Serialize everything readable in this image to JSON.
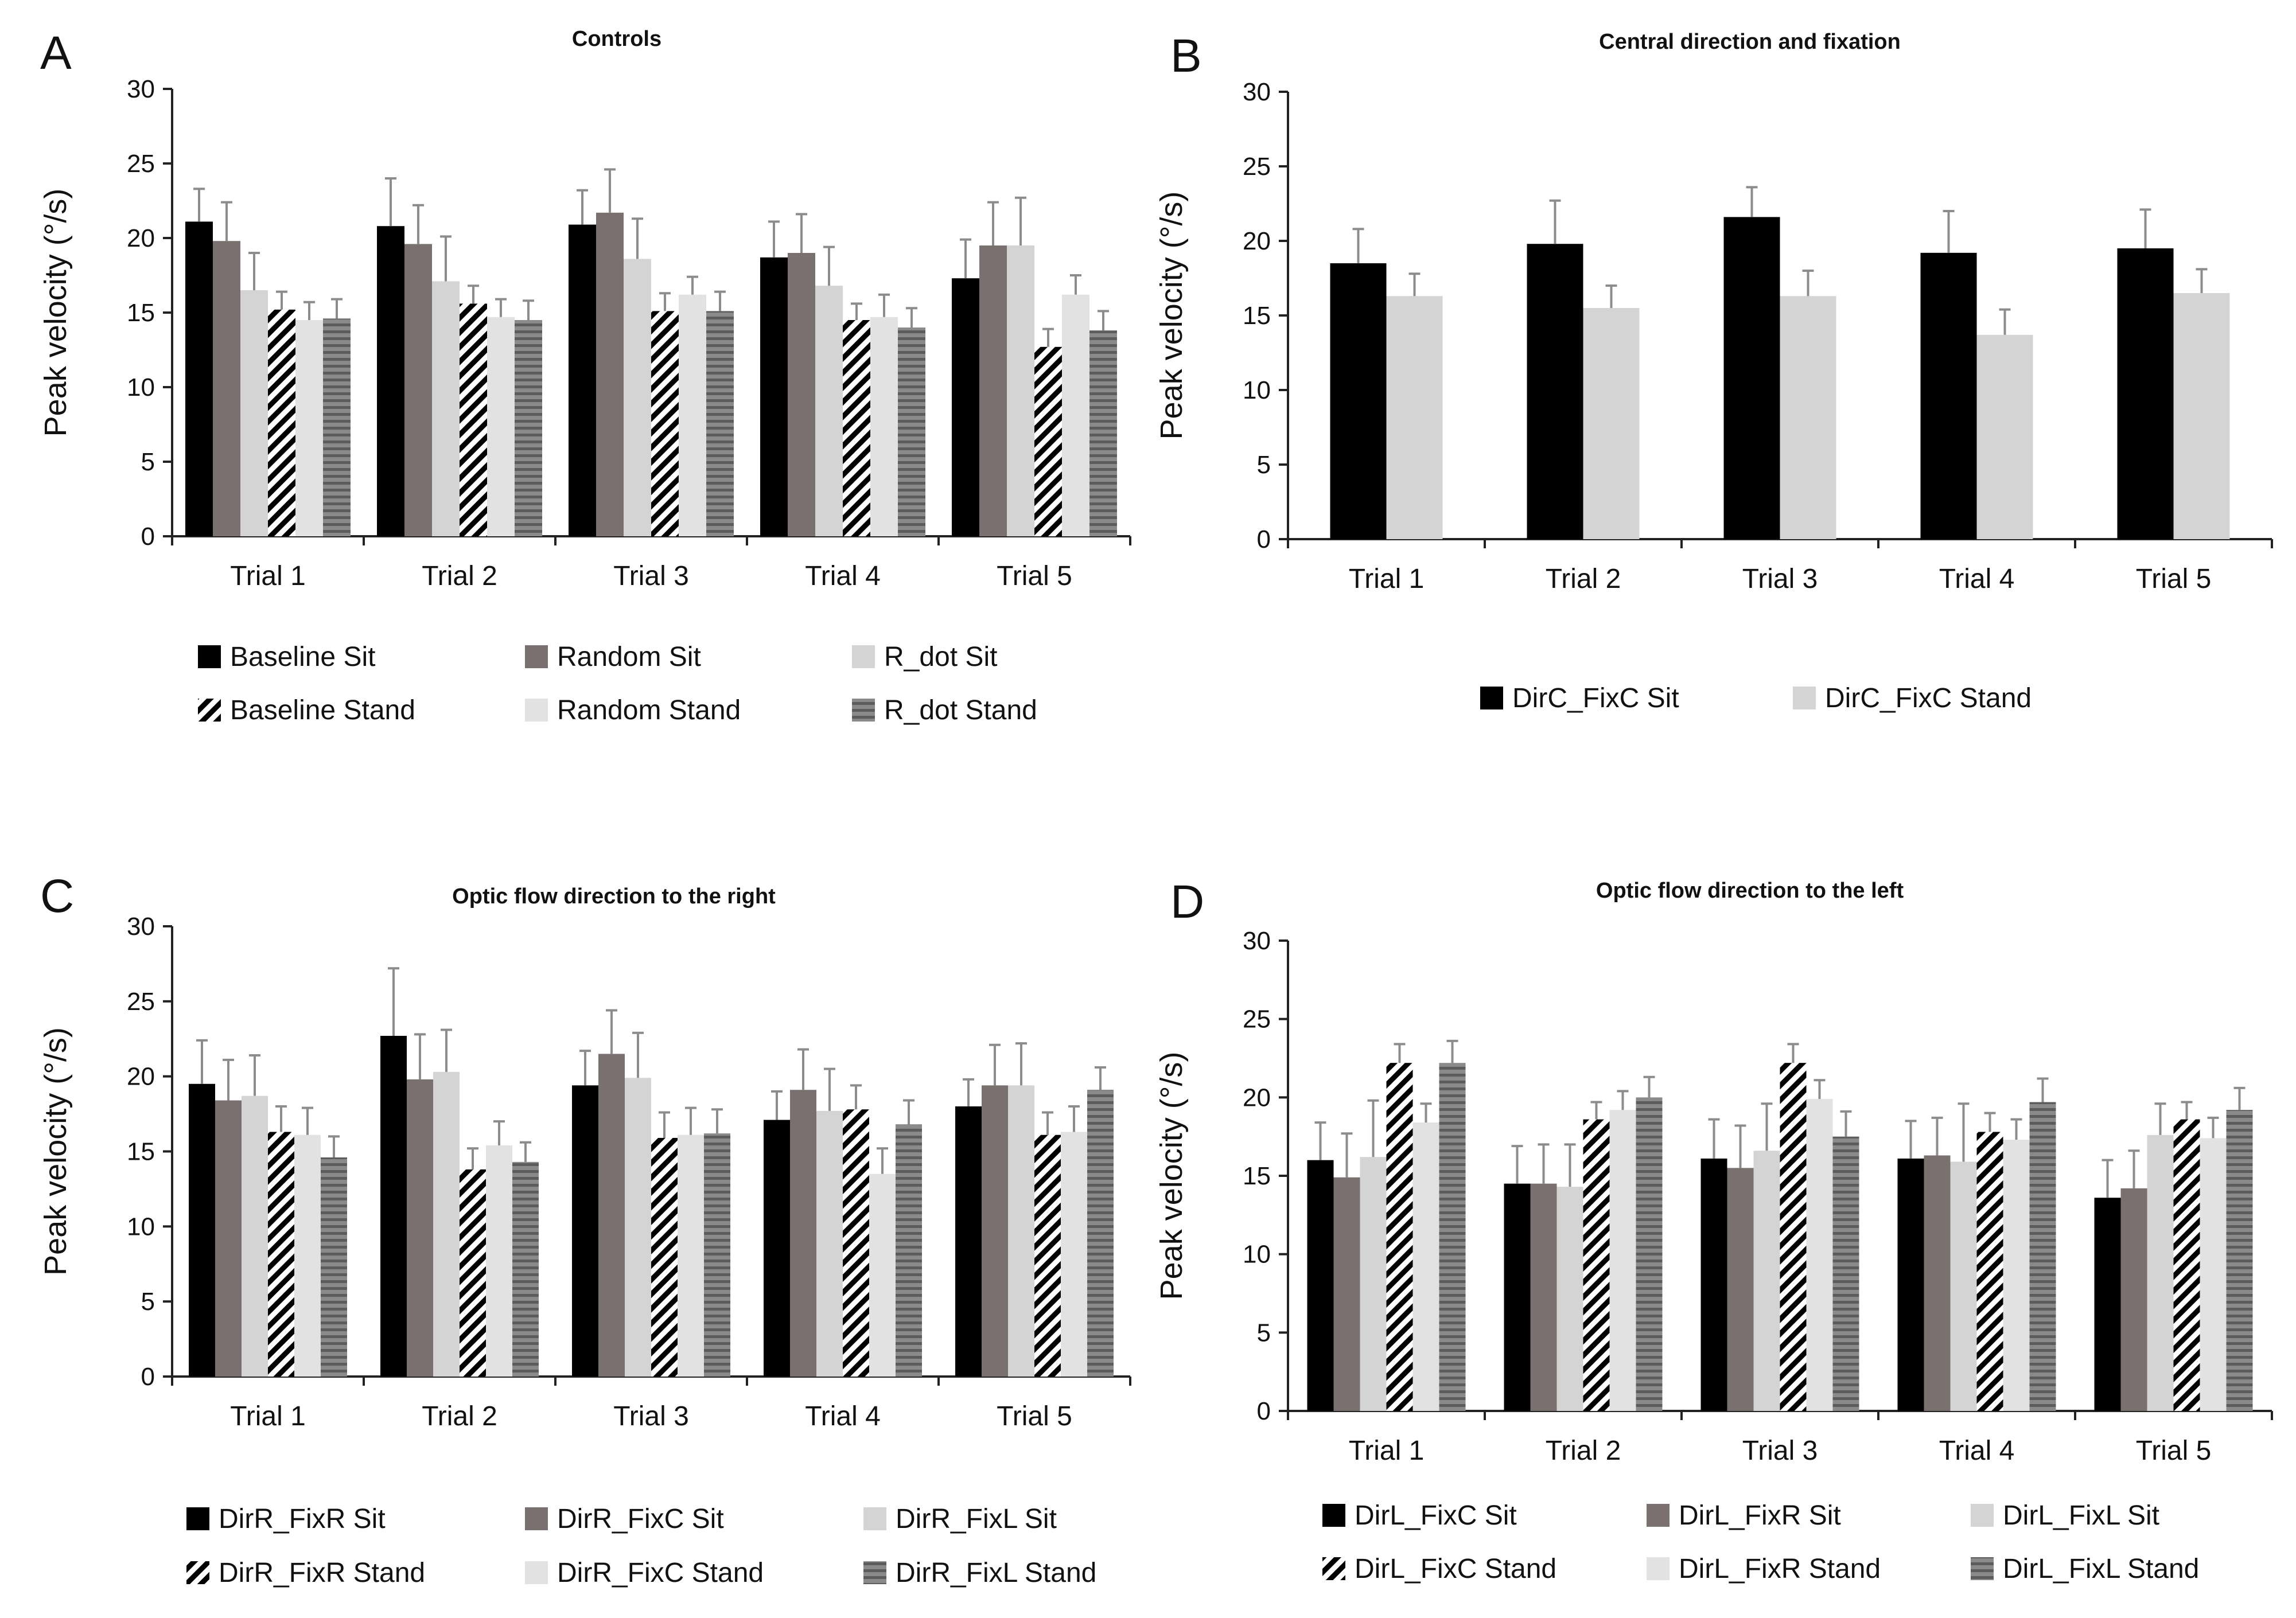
{
  "chart_data": [
    {
      "type": "bar",
      "panel": "A",
      "title": "Controls",
      "xlabel": "",
      "ylabel": "Peak velocity (°/s)",
      "ylim": [
        0,
        30
      ],
      "yticks": [
        0,
        5,
        10,
        15,
        20,
        25,
        30
      ],
      "categories": [
        "Trial 1",
        "Trial 2",
        "Trial 3",
        "Trial 4",
        "Trial 5"
      ],
      "series": [
        {
          "name": "Baseline Sit",
          "color": "#000000",
          "pattern": "solid",
          "values": [
            21.1,
            20.8,
            20.9,
            18.7,
            17.3
          ],
          "errors": [
            2.2,
            3.2,
            2.3,
            2.4,
            2.6
          ]
        },
        {
          "name": "Random Sit",
          "color": "#7a7070",
          "pattern": "solid",
          "values": [
            19.8,
            19.6,
            21.7,
            19.0,
            19.5
          ],
          "errors": [
            2.6,
            2.6,
            2.9,
            2.6,
            2.9
          ]
        },
        {
          "name": "R_dot Sit",
          "color": "#d4d4d4",
          "pattern": "solid",
          "values": [
            16.5,
            17.1,
            18.6,
            16.8,
            19.5
          ],
          "errors": [
            2.5,
            3.0,
            2.7,
            2.6,
            3.2
          ]
        },
        {
          "name": "Baseline Stand",
          "color": "#000000",
          "pattern": "diagonal",
          "values": [
            15.2,
            15.6,
            15.1,
            14.5,
            12.7
          ],
          "errors": [
            1.2,
            1.2,
            1.2,
            1.1,
            1.2
          ]
        },
        {
          "name": "Random Stand",
          "color": "#e2e2e2",
          "pattern": "solid",
          "values": [
            14.5,
            14.7,
            16.2,
            14.7,
            16.2
          ],
          "errors": [
            1.2,
            1.2,
            1.2,
            1.5,
            1.3
          ]
        },
        {
          "name": "R_dot Stand",
          "color": "#7a7a7a",
          "pattern": "horizontal",
          "values": [
            14.6,
            14.5,
            15.1,
            14.0,
            13.8
          ],
          "errors": [
            1.3,
            1.3,
            1.3,
            1.3,
            1.3
          ]
        }
      ],
      "legend_rows": [
        [
          "Baseline Sit",
          "Random Sit",
          "R_dot Sit"
        ],
        [
          "Baseline Stand",
          "Random Stand",
          "R_dot Stand"
        ]
      ]
    },
    {
      "type": "bar",
      "panel": "B",
      "title": "Central direction and fixation",
      "xlabel": "",
      "ylabel": "Peak velocity (°/s)",
      "ylim": [
        0,
        30
      ],
      "yticks": [
        0,
        5,
        10,
        15,
        20,
        25,
        30
      ],
      "categories": [
        "Trial 1",
        "Trial 2",
        "Trial 3",
        "Trial 4",
        "Trial 5"
      ],
      "series": [
        {
          "name": "DirC_FixC Sit",
          "color": "#000000",
          "pattern": "solid",
          "values": [
            18.5,
            19.8,
            21.6,
            19.2,
            19.5
          ],
          "errors": [
            2.3,
            2.9,
            2.0,
            2.8,
            2.6
          ]
        },
        {
          "name": "DirC_FixC Stand",
          "color": "#d4d4d4",
          "pattern": "solid",
          "values": [
            16.3,
            15.5,
            16.3,
            13.7,
            16.5
          ],
          "errors": [
            1.5,
            1.5,
            1.7,
            1.7,
            1.6
          ]
        }
      ],
      "legend_rows": [
        [
          "DirC_FixC Sit",
          "DirC_FixC Stand"
        ]
      ]
    },
    {
      "type": "bar",
      "panel": "C",
      "title": "Optic flow direction to the right",
      "xlabel": "",
      "ylabel": "Peak velocity (°/s)",
      "ylim": [
        0,
        30
      ],
      "yticks": [
        0,
        5,
        10,
        15,
        20,
        25,
        30
      ],
      "categories": [
        "Trial 1",
        "Trial 2",
        "Trial 3",
        "Trial 4",
        "Trial 5"
      ],
      "series": [
        {
          "name": "DirR_FixR Sit",
          "color": "#000000",
          "pattern": "solid",
          "values": [
            19.5,
            22.7,
            19.4,
            17.1,
            18.0
          ],
          "errors": [
            2.9,
            4.5,
            2.3,
            1.9,
            1.8
          ]
        },
        {
          "name": "DirR_FixC Sit",
          "color": "#7a7070",
          "pattern": "solid",
          "values": [
            18.4,
            19.8,
            21.5,
            19.1,
            19.4
          ],
          "errors": [
            2.7,
            3.0,
            2.9,
            2.7,
            2.7
          ]
        },
        {
          "name": "DirR_FixL Sit",
          "color": "#d4d4d4",
          "pattern": "solid",
          "values": [
            18.7,
            20.3,
            19.9,
            17.7,
            19.4
          ],
          "errors": [
            2.7,
            2.8,
            3.0,
            2.8,
            2.8
          ]
        },
        {
          "name": "DirR_FixR Stand",
          "color": "#000000",
          "pattern": "diagonal",
          "values": [
            16.3,
            13.8,
            15.9,
            17.8,
            16.1
          ],
          "errors": [
            1.7,
            1.4,
            1.7,
            1.6,
            1.5
          ]
        },
        {
          "name": "DirR_FixC Stand",
          "color": "#e2e2e2",
          "pattern": "solid",
          "values": [
            16.1,
            15.4,
            16.1,
            13.5,
            16.3
          ],
          "errors": [
            1.8,
            1.6,
            1.8,
            1.7,
            1.7
          ]
        },
        {
          "name": "DirR_FixL Stand",
          "color": "#7a7a7a",
          "pattern": "horizontal",
          "values": [
            14.6,
            14.3,
            16.2,
            16.8,
            19.1
          ],
          "errors": [
            1.4,
            1.3,
            1.6,
            1.6,
            1.5
          ]
        }
      ],
      "legend_rows": [
        [
          "DirR_FixR Sit",
          "DirR_FixC Sit",
          "DirR_FixL Sit"
        ],
        [
          "DirR_FixR Stand",
          "DirR_FixC Stand",
          "DirR_FixL Stand"
        ]
      ]
    },
    {
      "type": "bar",
      "panel": "D",
      "title": "Optic flow direction to the left",
      "xlabel": "",
      "ylabel": "Peak velocity (°/s)",
      "ylim": [
        0,
        30
      ],
      "yticks": [
        0,
        5,
        10,
        15,
        20,
        25,
        30
      ],
      "categories": [
        "Trial 1",
        "Trial 2",
        "Trial 3",
        "Trial 4",
        "Trial 5"
      ],
      "series": [
        {
          "name": "DirL_FixC Sit",
          "color": "#000000",
          "pattern": "solid",
          "values": [
            16.0,
            14.5,
            16.1,
            16.1,
            13.6
          ],
          "errors": [
            2.4,
            2.4,
            2.5,
            2.4,
            2.4
          ]
        },
        {
          "name": "DirL_FixR Sit",
          "color": "#7a7070",
          "pattern": "solid",
          "values": [
            14.9,
            14.5,
            15.5,
            16.3,
            14.2
          ],
          "errors": [
            2.8,
            2.5,
            2.7,
            2.4,
            2.4
          ]
        },
        {
          "name": "DirL_FixL Sit",
          "color": "#d4d4d4",
          "pattern": "solid",
          "values": [
            16.2,
            14.3,
            16.6,
            15.9,
            17.6
          ],
          "errors": [
            3.6,
            2.7,
            3.0,
            3.7,
            2.0
          ]
        },
        {
          "name": "DirL_FixC Stand",
          "color": "#000000",
          "pattern": "diagonal",
          "values": [
            22.2,
            18.6,
            22.2,
            17.8,
            18.6
          ],
          "errors": [
            1.2,
            1.1,
            1.2,
            1.2,
            1.1
          ]
        },
        {
          "name": "DirL_FixR Stand",
          "color": "#e2e2e2",
          "pattern": "solid",
          "values": [
            18.4,
            19.2,
            19.9,
            17.3,
            17.4
          ],
          "errors": [
            1.2,
            1.2,
            1.2,
            1.3,
            1.3
          ]
        },
        {
          "name": "DirL_FixL Stand",
          "color": "#7a7a7a",
          "pattern": "horizontal",
          "values": [
            22.2,
            20.0,
            17.5,
            19.7,
            19.2
          ],
          "errors": [
            1.4,
            1.3,
            1.6,
            1.5,
            1.4
          ]
        }
      ],
      "legend_rows": [
        [
          "DirL_FixC Sit",
          "DirL_FixR Sit",
          "DirL_FixL Sit"
        ],
        [
          "DirL_FixC Stand",
          "DirL_FixR Stand",
          "DirL_FixL Stand"
        ]
      ]
    }
  ]
}
